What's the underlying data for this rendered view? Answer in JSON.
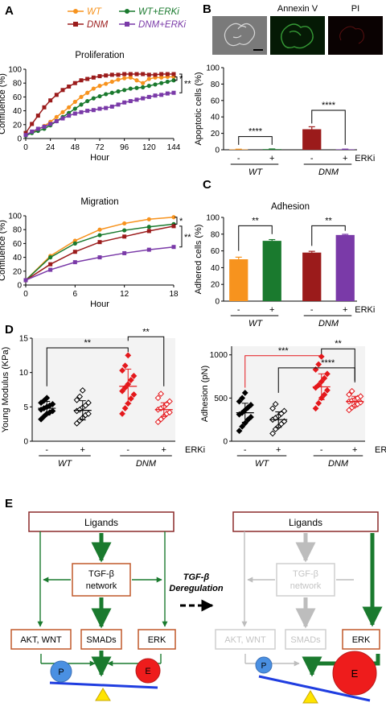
{
  "panels": {
    "A": {
      "label": "A",
      "legend": [
        "WT",
        "WT+ERKi",
        "DNM",
        "DNM+ERKi"
      ],
      "colors": {
        "WT": "#f7931e",
        "WT_ERKi": "#1a7a2e",
        "DNM": "#9b1b1b",
        "DNM_ERKi": "#7a3aa8"
      }
    },
    "B": {
      "label": "B",
      "micro_labels": [
        "Annexin V",
        "PI"
      ]
    },
    "C": {
      "label": "C"
    },
    "D": {
      "label": "D"
    },
    "E": {
      "label": "E",
      "left": {
        "ligands": "Ligands",
        "network_line1": "TGF-β",
        "network_line2": "network",
        "akt": "AKT, WNT",
        "smads": "SMADs",
        "erk": "ERK",
        "p": "P",
        "e": "E"
      },
      "right": {
        "ligands": "Ligands",
        "network_line1": "TGF-β",
        "network_line2": "network",
        "akt": "AKT, WNT",
        "smads": "SMADs",
        "erk": "ERK",
        "p": "P",
        "e": "E"
      },
      "dereg_line1": "TGF-β",
      "dereg_line2": "Deregulation"
    }
  },
  "chart_data": [
    {
      "id": "proliferation",
      "type": "line",
      "title": "Proliferation",
      "xlabel": "Hour",
      "ylabel": "Confluence (%)",
      "xlim": [
        0,
        144
      ],
      "ylim": [
        0,
        100
      ],
      "xticks": [
        "0",
        "24",
        "48",
        "72",
        "96",
        "120",
        "144"
      ],
      "yticks": [
        "0",
        "20",
        "40",
        "60",
        "80",
        "100"
      ],
      "x": [
        0,
        6,
        12,
        18,
        24,
        30,
        36,
        42,
        48,
        54,
        60,
        66,
        72,
        78,
        84,
        90,
        96,
        102,
        108,
        114,
        120,
        126,
        132,
        138,
        144
      ],
      "series": [
        {
          "name": "WT",
          "values": [
            5,
            9,
            13,
            18,
            24,
            31,
            38,
            45,
            53,
            60,
            66,
            72,
            76,
            79,
            82,
            85,
            87,
            88,
            84,
            80,
            86,
            88,
            88,
            89,
            89
          ]
        },
        {
          "name": "WT+ERKi",
          "values": [
            4,
            8,
            11,
            14,
            19,
            25,
            31,
            37,
            43,
            49,
            54,
            58,
            61,
            64,
            66,
            68,
            70,
            72,
            73,
            74,
            76,
            78,
            80,
            82,
            84
          ]
        },
        {
          "name": "DNM",
          "values": [
            8,
            21,
            33,
            45,
            55,
            63,
            70,
            75,
            80,
            84,
            86,
            88,
            90,
            91,
            92,
            92,
            93,
            93,
            93,
            93,
            92,
            92,
            93,
            93,
            93
          ]
        },
        {
          "name": "DNM+ERKi",
          "values": [
            5,
            10,
            14,
            17,
            21,
            25,
            29,
            33,
            36,
            38,
            40,
            41,
            43,
            44,
            46,
            49,
            52,
            54,
            56,
            58,
            60,
            62,
            63,
            65,
            66
          ]
        }
      ],
      "annotations": [
        "*",
        "**"
      ]
    },
    {
      "id": "migration",
      "type": "line",
      "title": "Migration",
      "xlabel": "Hour",
      "ylabel": "Confluence (%)",
      "xlim": [
        0,
        18
      ],
      "ylim": [
        0,
        100
      ],
      "xticks": [
        "0",
        "6",
        "12",
        "18"
      ],
      "yticks": [
        "0",
        "20",
        "40",
        "60",
        "80",
        "100"
      ],
      "x": [
        0,
        3,
        6,
        9,
        12,
        15,
        18
      ],
      "series": [
        {
          "name": "WT",
          "values": [
            7,
            42,
            64,
            80,
            89,
            95,
            98
          ]
        },
        {
          "name": "WT+ERKi",
          "values": [
            7,
            40,
            60,
            72,
            79,
            84,
            88
          ]
        },
        {
          "name": "DNM",
          "values": [
            7,
            30,
            48,
            62,
            70,
            78,
            85
          ]
        },
        {
          "name": "DNM+ERKi",
          "values": [
            7,
            22,
            33,
            40,
            46,
            51,
            55
          ]
        }
      ],
      "annotations": [
        "*",
        "**"
      ]
    },
    {
      "id": "apoptosis",
      "type": "bar",
      "ylabel": "Apoptotic cells (%)",
      "ylim": [
        0,
        100
      ],
      "yticks": [
        "0",
        "20",
        "40",
        "60",
        "80",
        "100"
      ],
      "categories": [
        "-",
        "+",
        "-",
        "+"
      ],
      "groups": [
        "WT",
        "DNM"
      ],
      "treatment": "ERKi",
      "values": [
        0.5,
        0.8,
        25,
        0.6
      ],
      "errors": [
        0.2,
        0.2,
        3,
        0.2
      ],
      "colors": [
        "#f7931e",
        "#1a7a2e",
        "#9b1b1b",
        "#7a3aa8"
      ],
      "annotations": [
        "****",
        "****"
      ]
    },
    {
      "id": "adhesion_bar",
      "type": "bar",
      "title": "Adhesion",
      "ylabel": "Adhered cells (%)",
      "ylim": [
        0,
        100
      ],
      "yticks": [
        "0",
        "20",
        "40",
        "60",
        "80",
        "100"
      ],
      "categories": [
        "-",
        "+",
        "-",
        "+"
      ],
      "groups": [
        "WT",
        "DNM"
      ],
      "treatment": "ERKi",
      "values": [
        50,
        72,
        58,
        79
      ],
      "errors": [
        2.5,
        1.5,
        1.5,
        0.8
      ],
      "colors": [
        "#f7931e",
        "#1a7a2e",
        "#9b1b1b",
        "#7a3aa8"
      ],
      "annotations": [
        "**",
        "**"
      ]
    },
    {
      "id": "young_modulus",
      "type": "scatter",
      "ylabel": "Young Modulus (KPa)",
      "ylim": [
        0,
        15
      ],
      "yticks": [
        "0",
        "5",
        "10",
        "15"
      ],
      "categories": [
        "-",
        "+",
        "-",
        "+"
      ],
      "groups": [
        "WT",
        "DNM"
      ],
      "treatment": "ERKi",
      "means": [
        4.8,
        4.5,
        8.0,
        4.6
      ],
      "sds": [
        1.0,
        1.4,
        2.5,
        1.0
      ],
      "points": [
        [
          3.2,
          3.6,
          4.0,
          4.2,
          4.4,
          4.6,
          4.8,
          5.0,
          5.2,
          5.4,
          5.6,
          5.9,
          6.3
        ],
        [
          2.6,
          3.0,
          3.4,
          3.8,
          4.0,
          4.4,
          4.6,
          4.9,
          5.2,
          5.6,
          6.0,
          6.5,
          7.4
        ],
        [
          4.0,
          4.8,
          5.5,
          6.2,
          6.8,
          7.3,
          7.8,
          8.3,
          8.9,
          9.5,
          10.3,
          11.0,
          12.5
        ],
        [
          2.8,
          3.2,
          3.6,
          4.0,
          4.2,
          4.6,
          4.8,
          5.0,
          5.4,
          5.8,
          6.3,
          6.9
        ]
      ],
      "annotations": [
        "**",
        "**"
      ]
    },
    {
      "id": "adhesion_force",
      "type": "scatter",
      "ylabel": "Adhesion (pN)",
      "ylim": [
        0,
        1100
      ],
      "yticks": [
        "0",
        "500",
        "1000"
      ],
      "categories": [
        "-",
        "+",
        "-",
        "+"
      ],
      "groups": [
        "WT",
        "DNM"
      ],
      "treatment": "ERKi",
      "means": [
        330,
        250,
        630,
        460
      ],
      "sds": [
        110,
        90,
        150,
        60
      ],
      "points": [
        [
          120,
          170,
          210,
          250,
          280,
          310,
          330,
          360,
          390,
          420,
          460,
          500,
          560
        ],
        [
          90,
          140,
          170,
          200,
          230,
          250,
          270,
          290,
          320,
          350,
          380,
          430
        ],
        [
          380,
          440,
          500,
          540,
          590,
          620,
          650,
          690,
          730,
          780,
          830,
          890,
          980
        ],
        [
          360,
          390,
          410,
          430,
          450,
          460,
          470,
          480,
          500,
          520,
          540,
          580
        ]
      ],
      "annotations": [
        "***",
        "****",
        "**"
      ]
    }
  ]
}
